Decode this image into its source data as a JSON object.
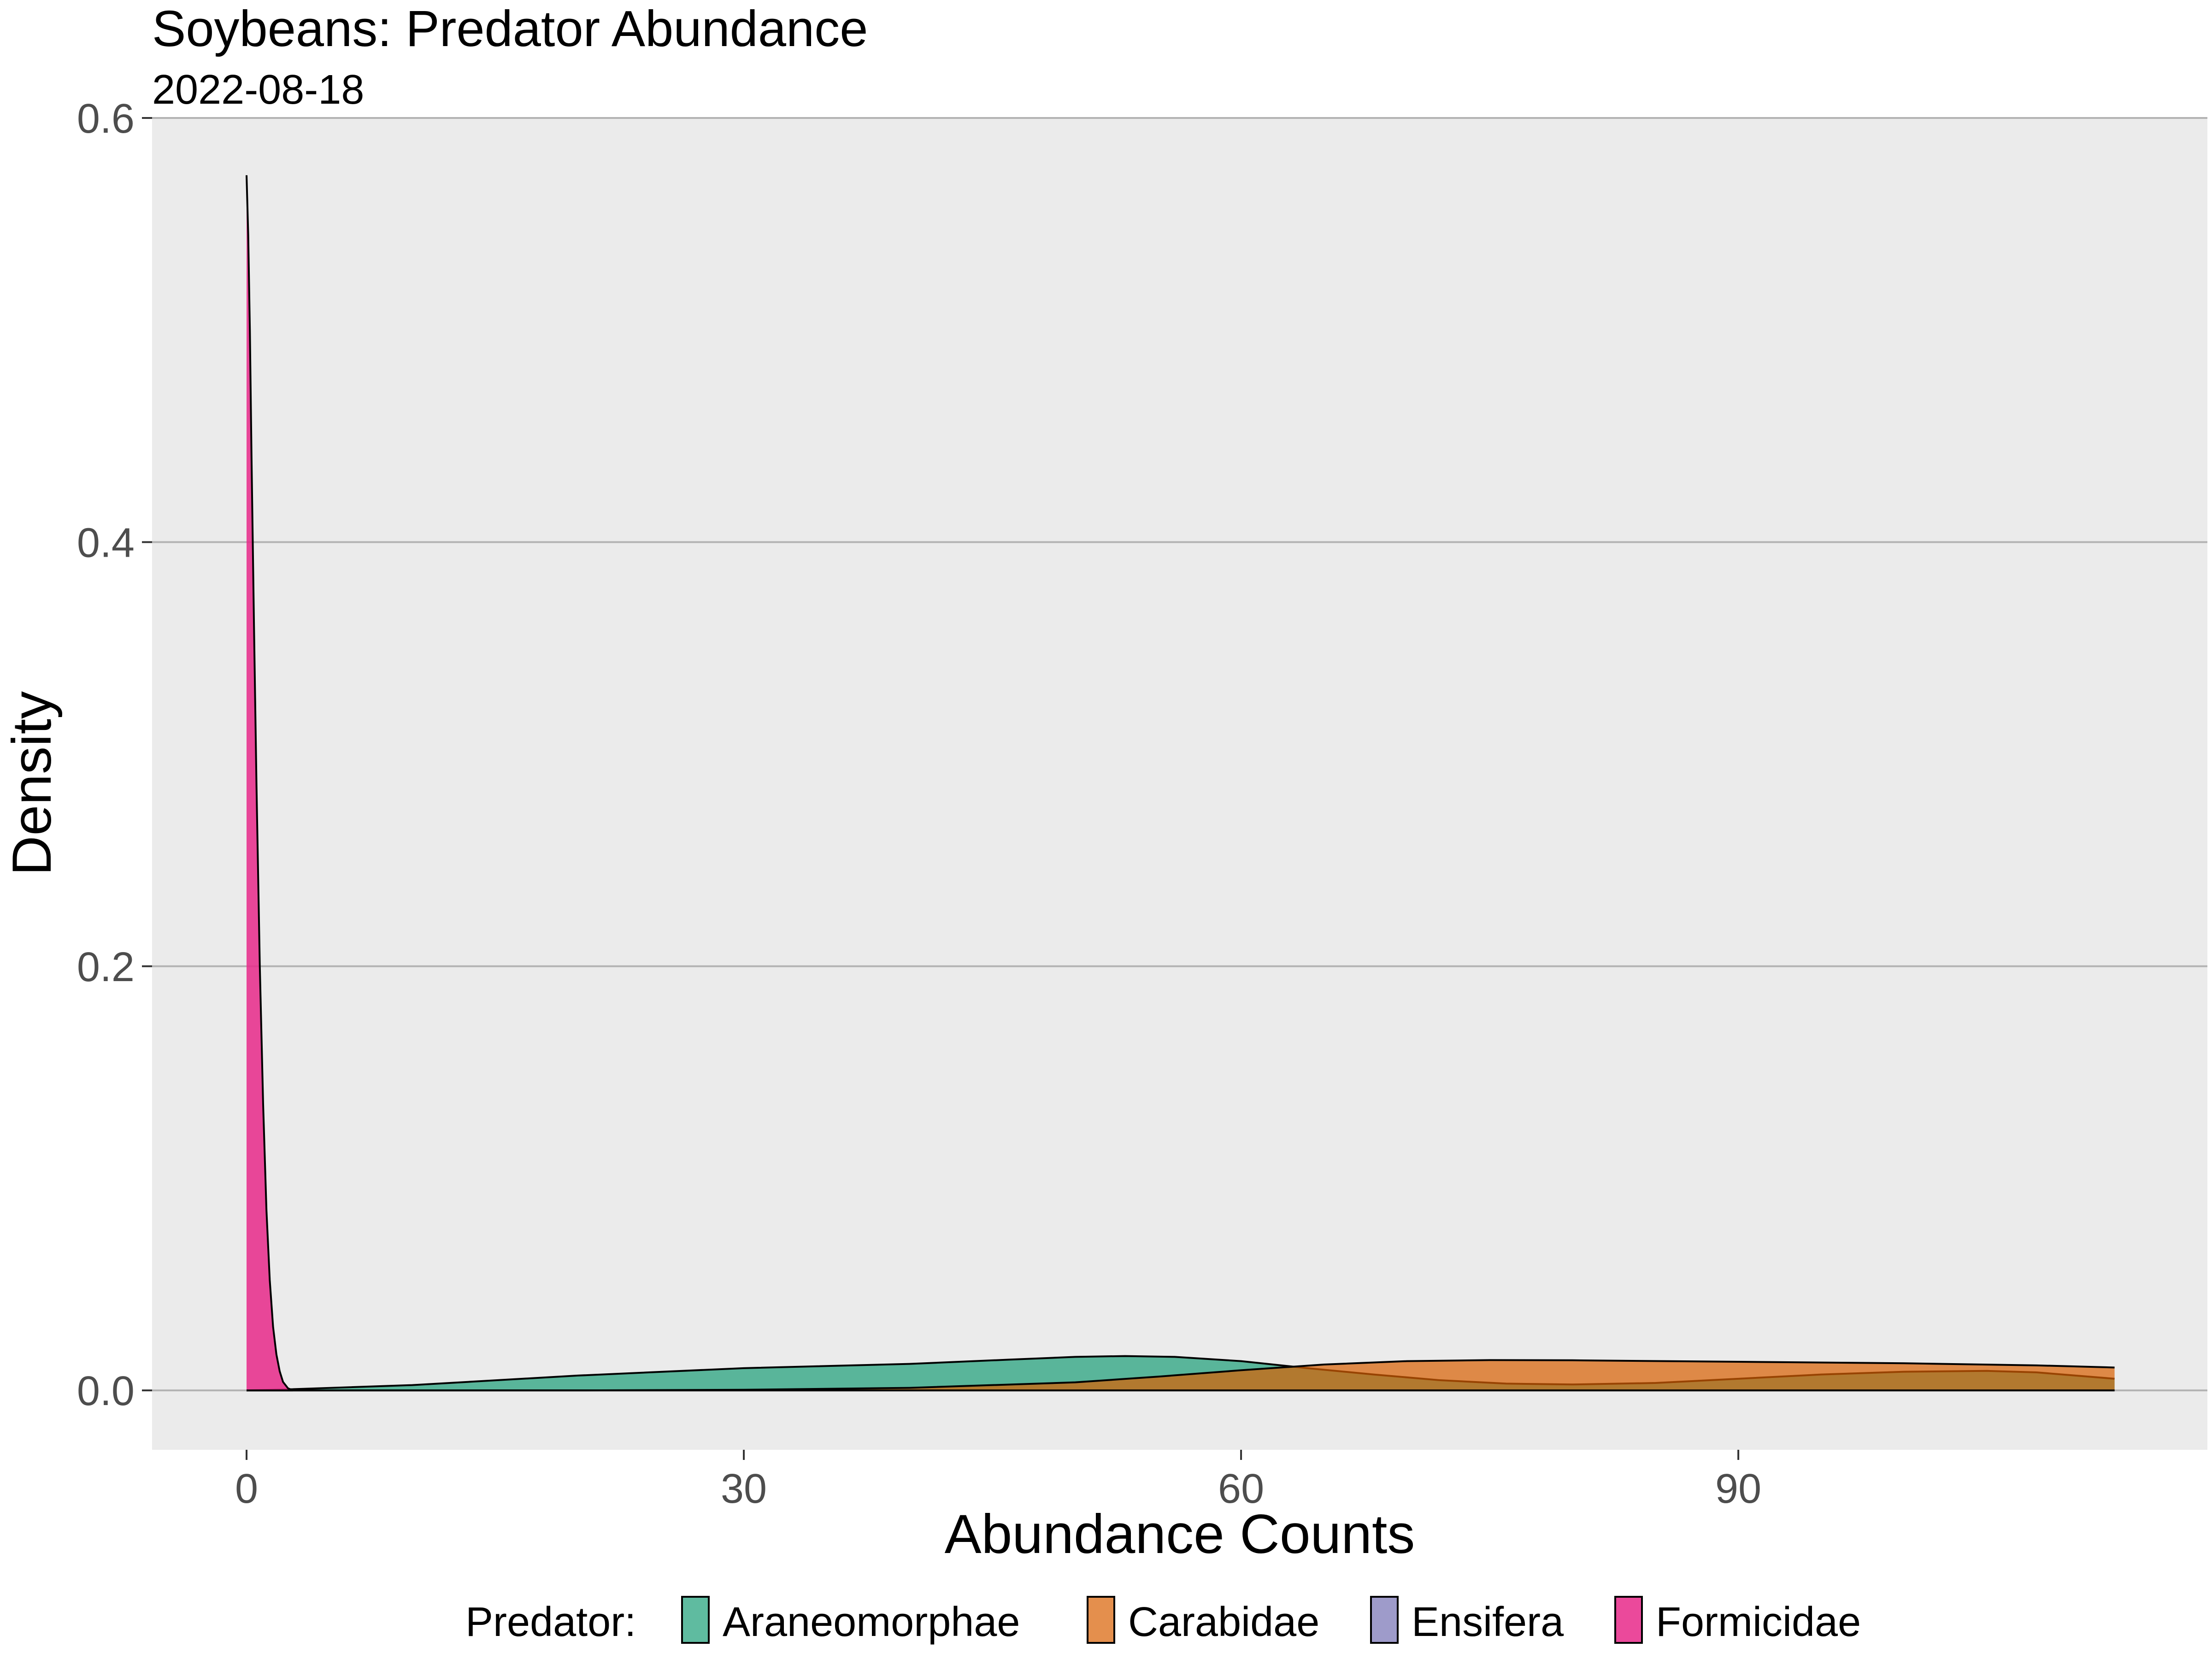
{
  "chart_data": {
    "type": "area",
    "title": "Soybeans: Predator Abundance",
    "subtitle": "2022-08-18",
    "xlabel": "Abundance Counts",
    "ylabel": "Density",
    "xlim": [
      -5.7,
      118.3
    ],
    "ylim": [
      -0.028,
      0.6
    ],
    "x_ticks": [
      0,
      30,
      60,
      90
    ],
    "x_tick_labels": [
      "0",
      "30",
      "60",
      "90"
    ],
    "y_ticks": [
      0.0,
      0.2,
      0.4,
      0.6
    ],
    "y_tick_labels": [
      "0.0",
      "0.2",
      "0.4",
      "0.6"
    ],
    "grid": true,
    "legend": {
      "title": "Predator:",
      "position": "bottom",
      "entries": [
        "Araneomorphae",
        "Carabidae",
        "Ensifera",
        "Formicidae"
      ]
    },
    "series": [
      {
        "name": "Araneomorphae",
        "color": "#1B9E77",
        "fill_opacity": 0.7,
        "x": [
          0,
          2.5,
          10,
          20,
          30,
          40,
          46,
          50,
          53,
          56,
          60,
          64,
          68,
          72,
          76,
          80,
          85,
          90,
          95,
          100,
          105,
          108,
          112.7
        ],
        "y": [
          0.0,
          0.0005,
          0.0025,
          0.007,
          0.0105,
          0.0125,
          0.0145,
          0.0158,
          0.0162,
          0.0158,
          0.0138,
          0.0105,
          0.0075,
          0.0048,
          0.0032,
          0.0028,
          0.0035,
          0.0055,
          0.0075,
          0.0088,
          0.0092,
          0.0085,
          0.0055
        ]
      },
      {
        "name": "Carabidae",
        "color": "#D95F02",
        "fill_opacity": 0.7,
        "x": [
          0,
          20,
          30,
          40,
          50,
          55,
          60,
          65,
          70,
          75,
          80,
          90,
          100,
          108,
          112.7
        ],
        "y": [
          0.0,
          0.0,
          0.0003,
          0.0012,
          0.0038,
          0.0065,
          0.0095,
          0.0122,
          0.0138,
          0.0143,
          0.0142,
          0.0135,
          0.0128,
          0.0118,
          0.0108
        ]
      },
      {
        "name": "Ensifera",
        "color": "#7570B3",
        "fill_opacity": 0.7,
        "x": [],
        "y": []
      },
      {
        "name": "Formicidae",
        "color": "#E7298A",
        "fill_opacity": 0.85,
        "x": [
          0,
          0.1,
          0.2,
          0.3,
          0.45,
          0.6,
          0.8,
          1.0,
          1.2,
          1.4,
          1.6,
          1.8,
          2.0,
          2.2,
          2.5,
          2.8
        ],
        "y": [
          0.573,
          0.545,
          0.5,
          0.44,
          0.36,
          0.285,
          0.2,
          0.135,
          0.085,
          0.052,
          0.03,
          0.017,
          0.009,
          0.004,
          0.001,
          0.0
        ]
      }
    ]
  }
}
